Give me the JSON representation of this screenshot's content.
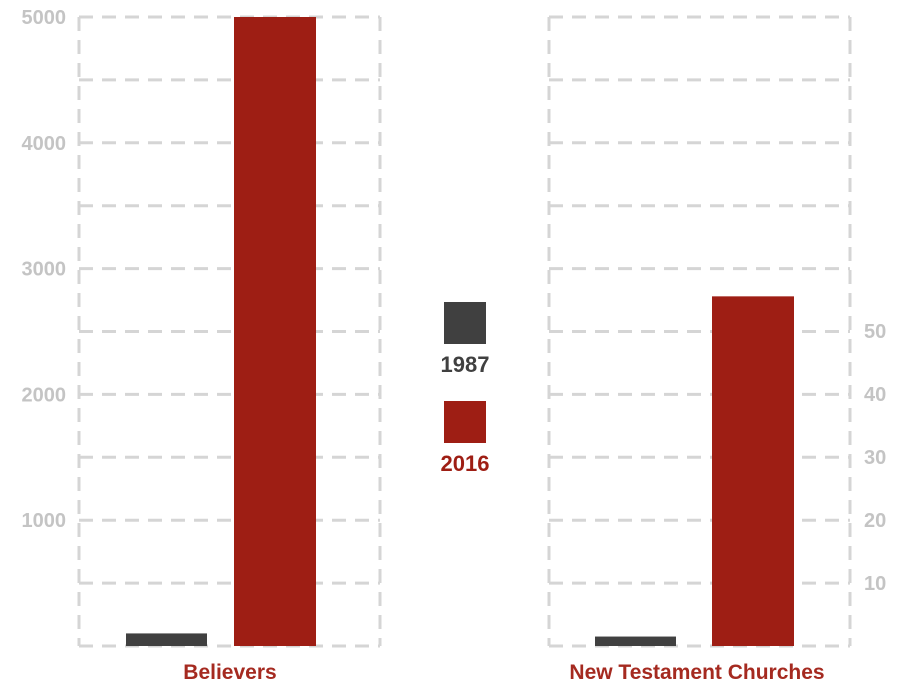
{
  "colors": {
    "series_1987": "#404040",
    "series_2016": "#9e1e14",
    "grid": "#d5d5d5",
    "tick": "#c4c4c4",
    "category_label": "#a52a20"
  },
  "legend": {
    "items": [
      {
        "label": "1987",
        "color": "#404040"
      },
      {
        "label": "2016",
        "color": "#9e1e14"
      }
    ],
    "position": "center"
  },
  "chart_data": [
    {
      "type": "bar",
      "categories": [
        "Believers"
      ],
      "series": [
        {
          "name": "1987",
          "values": [
            100
          ]
        },
        {
          "name": "2016",
          "values": [
            5030
          ]
        }
      ],
      "ylim": [
        0,
        5000
      ],
      "yticks": [
        1000,
        2000,
        3000,
        4000,
        5000
      ],
      "tick_labels": [
        "1000",
        "2000",
        "3000",
        "4000",
        "5000"
      ],
      "yaxis_side": "left",
      "grid": true
    },
    {
      "type": "bar",
      "categories": [
        "New Testament Churches"
      ],
      "series": [
        {
          "name": "1987",
          "values": [
            1.5
          ]
        },
        {
          "name": "2016",
          "values": [
            55.5
          ]
        }
      ],
      "ylim": [
        0,
        100
      ],
      "yticks": [
        10,
        20,
        30,
        40,
        50
      ],
      "tick_labels": [
        "10",
        "20",
        "30",
        "40",
        "50"
      ],
      "yaxis_side": "right",
      "grid": true
    }
  ]
}
